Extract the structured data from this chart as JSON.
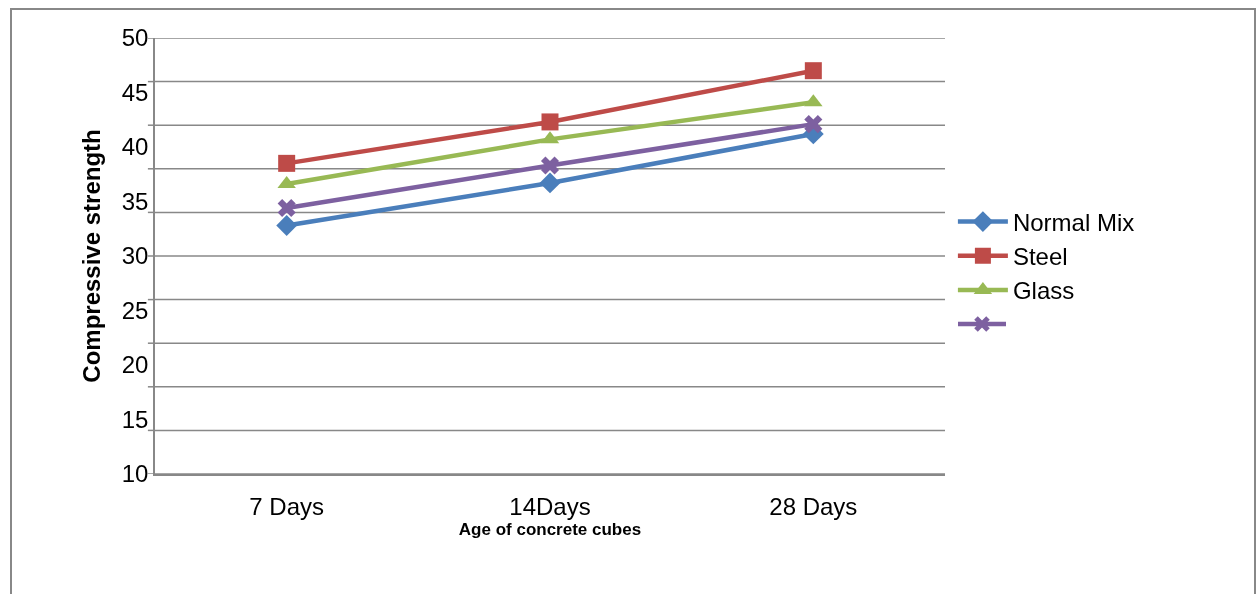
{
  "chart_data": {
    "type": "line",
    "xlabel": "Age of concrete cubes",
    "ylabel": "Compressive strength",
    "categories": [
      "7 Days",
      "14Days",
      "28 Days"
    ],
    "series": [
      {
        "name": "Normal Mix",
        "color": "#4a7ebb",
        "marker": "diamond",
        "values": [
          32.8,
          36.7,
          41.2
        ]
      },
      {
        "name": "Steel",
        "color": "#be4b48",
        "marker": "square",
        "values": [
          38.5,
          42.3,
          47.0
        ]
      },
      {
        "name": "Glass",
        "color": "#98b954",
        "marker": "triangle",
        "values": [
          36.6,
          40.7,
          44.1
        ]
      },
      {
        "color": "#7d60a0",
        "marker": "cross",
        "values": [
          34.4,
          38.3,
          42.1
        ]
      }
    ],
    "ylim": [
      10,
      50
    ],
    "yticks": [
      10,
      15,
      20,
      25,
      30,
      35,
      40,
      45,
      50,
      {
        "value": 10,
        "label": null
      },
      {
        "value": 14,
        "label": null
      },
      {
        "value": 18,
        "label": null
      },
      {
        "value": 22,
        "label": null
      },
      {
        "value": 26,
        "label": null
      },
      {
        "value": 30,
        "label": null
      },
      {
        "value": 34,
        "label": null
      },
      {
        "value": 38,
        "label": null
      },
      {
        "value": 42,
        "label": null
      },
      {
        "value": 46,
        "label": null
      },
      {
        "value": 50,
        "label": null
      }
    ],
    "grid": "y",
    "legend": "right",
    "line_style": "solid"
  }
}
